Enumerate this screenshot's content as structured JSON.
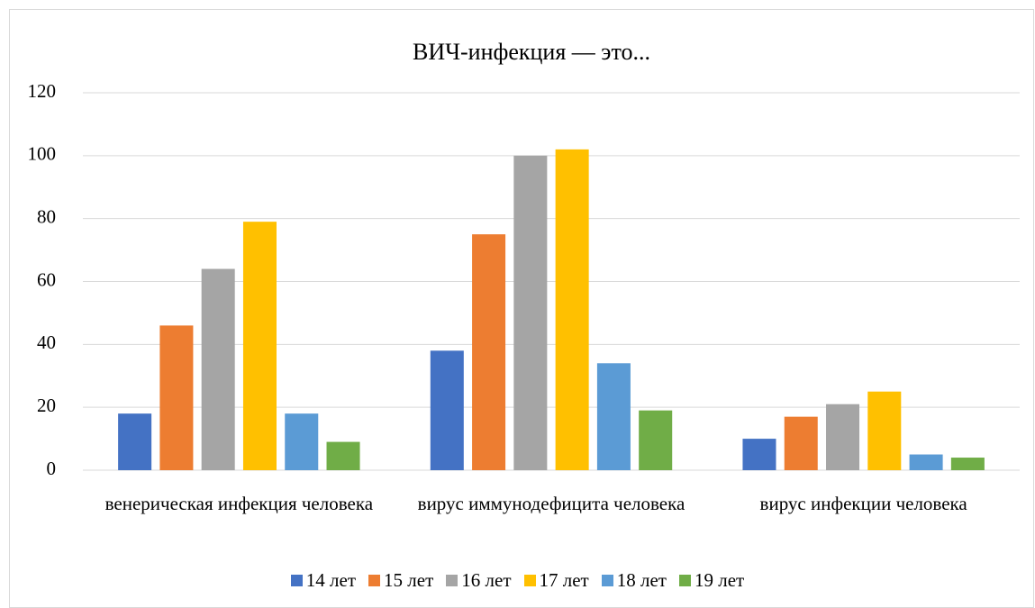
{
  "chart_data": {
    "type": "bar",
    "title": "ВИЧ-инфекция — это...",
    "categories": [
      "венерическая инфекция человека",
      "вирус иммунодефицита человека",
      "вирус инфекции человека"
    ],
    "series": [
      {
        "name": "14 лет",
        "color": "#4472c4",
        "values": [
          18,
          38,
          10
        ]
      },
      {
        "name": "15 лет",
        "color": "#ed7d31",
        "values": [
          46,
          75,
          17
        ]
      },
      {
        "name": "16 лет",
        "color": "#a5a5a5",
        "values": [
          64,
          100,
          21
        ]
      },
      {
        "name": "17 лет",
        "color": "#ffc000",
        "values": [
          79,
          102,
          25
        ]
      },
      {
        "name": "18 лет",
        "color": "#5b9bd5",
        "values": [
          18,
          34,
          5
        ]
      },
      {
        "name": "19 лет",
        "color": "#70ad47",
        "values": [
          9,
          19,
          4
        ]
      }
    ],
    "ylim": [
      0,
      120
    ],
    "yticks": [
      0,
      20,
      40,
      60,
      80,
      100,
      120
    ],
    "grid": true,
    "legend": "bottom"
  }
}
